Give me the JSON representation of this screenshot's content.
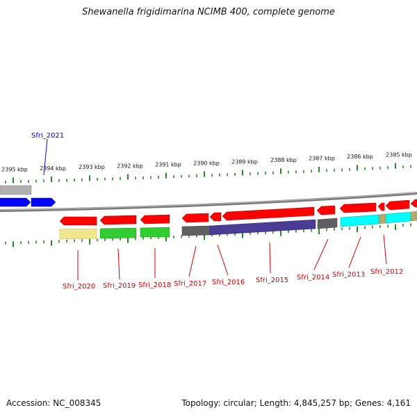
{
  "title": "Shewanella frigidimarina NCIMB 400, complete genome",
  "accession": "Accession: NC_008345",
  "summary": "Topology: circular; Length: 4,845,257 bp; Genes: 4,161",
  "colors": {
    "highlight_label": "#0000cc",
    "gene_label": "#cc0000",
    "tick": "#228b22",
    "backbone": "#808080",
    "gene_arrow": "#ff0000",
    "highlight_arrow": "#0000ff"
  },
  "ruler_labels": [
    "2395 kbp",
    "2394 kbp",
    "2393 kbp",
    "2392 kbp",
    "2391 kbp",
    "2390 kbp",
    "2389 kbp",
    "2388 kbp",
    "2387 kbp",
    "2386 kbp",
    "2385 kbp"
  ],
  "highlight_gene": "Sfri_2021",
  "gene_labels": [
    "Sfri_2020",
    "Sfri_2019",
    "Sfri_2018",
    "Sfri_2017",
    "Sfri_2016",
    "Sfri_2015",
    "Sfri_2014",
    "Sfri_2013",
    "Sfri_2012"
  ],
  "feature_colors": {
    "top_gray": "#b0b0b0",
    "khaki": "#f0e68c",
    "green": "#32cd32",
    "dark_gray": "#606060",
    "navy": "#4b3c96",
    "cyan": "#00ffff",
    "olive": "#b4aa6e"
  }
}
